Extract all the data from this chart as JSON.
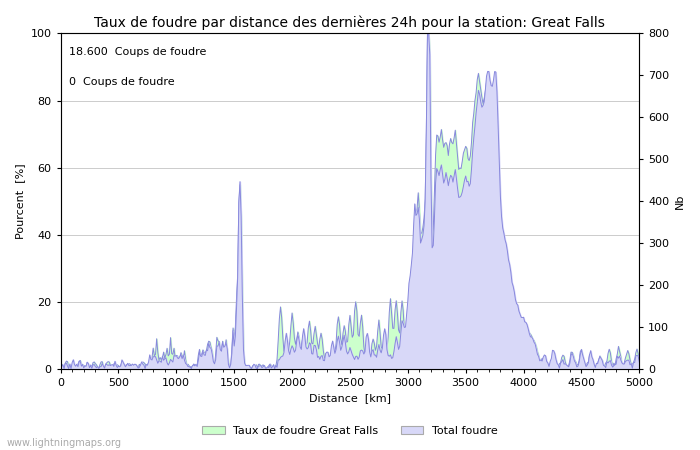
{
  "title": "Taux de foudre par distance des dernières 24h pour la station: Great Falls",
  "xlabel": "Distance  [km]",
  "ylabel_left": "Pourcent  [%]",
  "ylabel_right": "Nb",
  "annotation_line1": "18.600  Coups de foudre",
  "annotation_line2": "0  Coups de foudre",
  "legend_label1": "Taux de foudre Great Falls",
  "legend_label2": "Total foudre",
  "watermark": "www.lightningmaps.org",
  "xlim": [
    0,
    5000
  ],
  "ylim_left": [
    0,
    100
  ],
  "ylim_right": [
    0,
    800
  ],
  "xticks": [
    0,
    500,
    1000,
    1500,
    2000,
    2500,
    3000,
    3500,
    4000,
    4500,
    5000
  ],
  "yticks_left": [
    0,
    20,
    40,
    60,
    80,
    100
  ],
  "yticks_right": [
    0,
    100,
    200,
    300,
    400,
    500,
    600,
    700,
    800
  ],
  "color_line": "#8888dd",
  "color_fill_rate": "#ccffcc",
  "color_fill_total": "#d8d8f8",
  "bg_color": "#ffffff",
  "grid_color": "#cccccc",
  "title_fontsize": 10,
  "axis_fontsize": 8,
  "tick_fontsize": 8,
  "annotation_fontsize": 8,
  "figsize": [
    7.0,
    4.5
  ],
  "dpi": 100
}
